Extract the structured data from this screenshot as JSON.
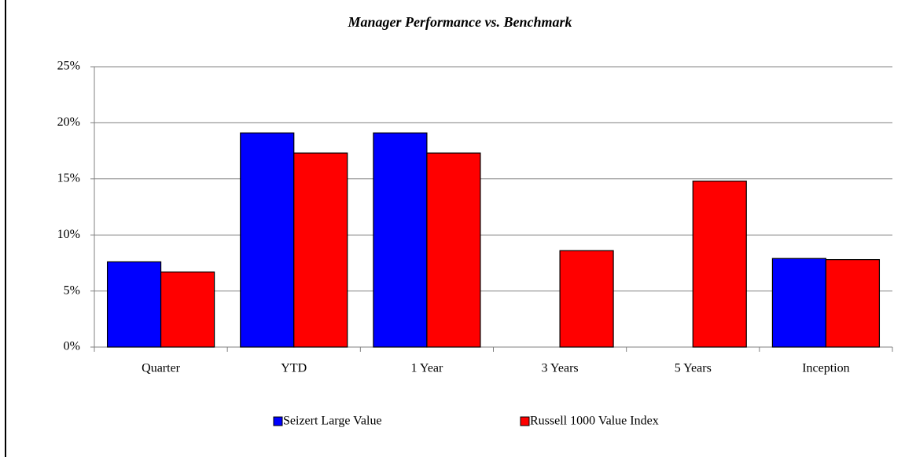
{
  "chart_data": {
    "type": "bar",
    "title": "Manager Performance vs. Benchmark",
    "categories": [
      "Quarter",
      "YTD",
      "1 Year",
      "3 Years",
      "5 Years",
      "Inception"
    ],
    "series": [
      {
        "name": "Seizert Large Value",
        "color": "#0000ff",
        "values": [
          7.6,
          19.1,
          19.1,
          null,
          null,
          7.9
        ]
      },
      {
        "name": "Russell 1000 Value Index",
        "color": "#ff0000",
        "values": [
          6.7,
          17.3,
          17.3,
          8.6,
          14.8,
          7.8
        ]
      }
    ],
    "ylim": [
      0,
      25
    ],
    "yticks": [
      {
        "value": 0,
        "label": "0%"
      },
      {
        "value": 5,
        "label": "5%"
      },
      {
        "value": 10,
        "label": "10%"
      },
      {
        "value": 15,
        "label": "15%"
      },
      {
        "value": 20,
        "label": "20%"
      },
      {
        "value": 25,
        "label": "25%"
      }
    ],
    "grid": true,
    "legend": "bottom"
  }
}
